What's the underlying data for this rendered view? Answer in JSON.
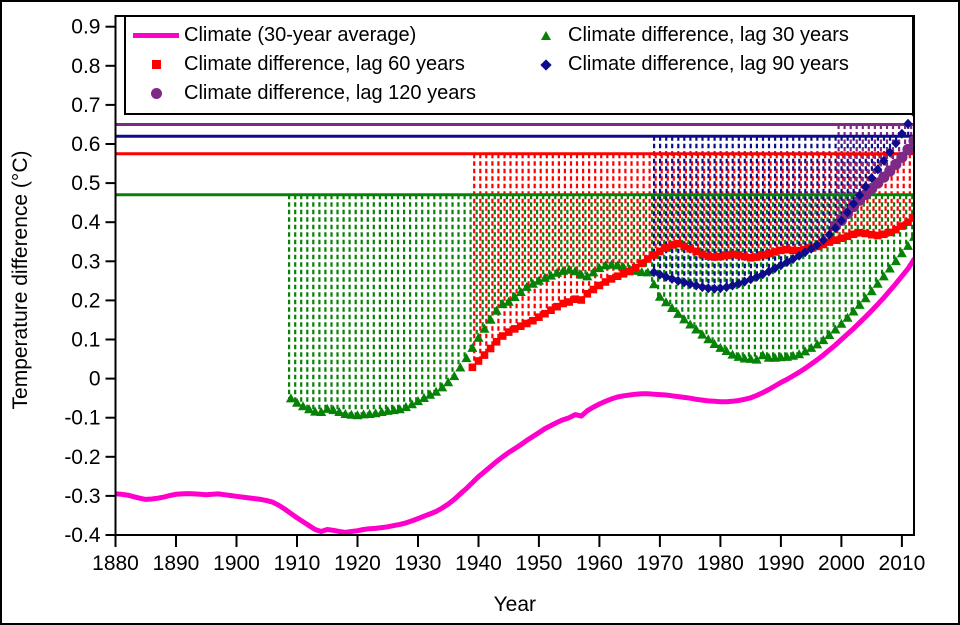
{
  "chart_data": {
    "type": "line",
    "title": "",
    "xlabel": "Year",
    "ylabel": "Temperature difference (°C)",
    "x_range": [
      1880,
      2012
    ],
    "y_range": [
      -0.4,
      0.93
    ],
    "grid": false,
    "legend_position": "top",
    "x_ticks": [
      1880,
      1890,
      1900,
      1910,
      1920,
      1930,
      1940,
      1950,
      1960,
      1970,
      1980,
      1990,
      2000,
      2010
    ],
    "y_tick_values": [
      -0.4,
      -0.3,
      -0.2,
      -0.1,
      0,
      0.1,
      0.2,
      0.3,
      0.4,
      0.5,
      0.6,
      0.7,
      0.8,
      0.9
    ],
    "y_tick_labels": [
      "-0.4",
      "-0.3",
      "-0.2",
      "-0.1",
      "0",
      "0.1",
      "0.2",
      "0.3",
      "0.4",
      "0.5",
      "0.6",
      "0.7",
      "0.8",
      "0.9"
    ],
    "reference_lines": [
      {
        "label": "Climate difference, lag 30 years",
        "value": 0.47,
        "color": "#068206"
      },
      {
        "label": "Climate difference, lag 60 years",
        "value": 0.575,
        "color": "#ff0000"
      },
      {
        "label": "Climate difference, lag 90 years",
        "value": 0.62,
        "color": "#0d0d8c"
      },
      {
        "label": "Climate difference, lag 120 years",
        "value": 0.65,
        "color": "#7d2a86"
      }
    ],
    "series": [
      {
        "name": "Climate (30-year average)",
        "color": "#ff00cc",
        "marker": "line",
        "start_year": 1880,
        "values": [
          -0.295,
          -0.296,
          -0.298,
          -0.302,
          -0.306,
          -0.309,
          -0.308,
          -0.306,
          -0.303,
          -0.299,
          -0.296,
          -0.295,
          -0.294,
          -0.295,
          -0.296,
          -0.297,
          -0.296,
          -0.295,
          -0.297,
          -0.299,
          -0.301,
          -0.303,
          -0.305,
          -0.307,
          -0.309,
          -0.312,
          -0.316,
          -0.324,
          -0.334,
          -0.345,
          -0.356,
          -0.366,
          -0.376,
          -0.386,
          -0.391,
          -0.386,
          -0.388,
          -0.391,
          -0.393,
          -0.391,
          -0.389,
          -0.386,
          -0.384,
          -0.383,
          -0.381,
          -0.379,
          -0.376,
          -0.373,
          -0.369,
          -0.364,
          -0.358,
          -0.352,
          -0.346,
          -0.34,
          -0.331,
          -0.321,
          -0.309,
          -0.295,
          -0.281,
          -0.266,
          -0.251,
          -0.238,
          -0.225,
          -0.212,
          -0.2,
          -0.189,
          -0.179,
          -0.169,
          -0.158,
          -0.148,
          -0.138,
          -0.128,
          -0.12,
          -0.112,
          -0.105,
          -0.1,
          -0.092,
          -0.096,
          -0.082,
          -0.073,
          -0.065,
          -0.058,
          -0.052,
          -0.047,
          -0.044,
          -0.042,
          -0.04,
          -0.039,
          -0.039,
          -0.04,
          -0.041,
          -0.042,
          -0.044,
          -0.046,
          -0.048,
          -0.05,
          -0.053,
          -0.055,
          -0.057,
          -0.058,
          -0.059,
          -0.059,
          -0.058,
          -0.056,
          -0.053,
          -0.049,
          -0.043,
          -0.036,
          -0.028,
          -0.019,
          -0.01,
          -0.002,
          0.007,
          0.016,
          0.026,
          0.037,
          0.048,
          0.06,
          0.073,
          0.086,
          0.1,
          0.114,
          0.128,
          0.143,
          0.158,
          0.174,
          0.19,
          0.207,
          0.225,
          0.243,
          0.262,
          0.281,
          0.305
        ]
      },
      {
        "name": "Climate difference, lag 30 years",
        "color": "#068206",
        "marker": "triangle",
        "start_year": 1909,
        "ref_line": 0.47,
        "values": [
          -0.05,
          -0.061,
          -0.07,
          -0.078,
          -0.084,
          -0.085,
          -0.077,
          -0.08,
          -0.085,
          -0.09,
          -0.092,
          -0.093,
          -0.091,
          -0.09,
          -0.088,
          -0.085,
          -0.082,
          -0.08,
          -0.078,
          -0.072,
          -0.065,
          -0.057,
          -0.049,
          -0.041,
          -0.033,
          -0.022,
          -0.009,
          0.007,
          0.029,
          0.053,
          0.079,
          0.105,
          0.128,
          0.151,
          0.174,
          0.191,
          0.197,
          0.209,
          0.222,
          0.235,
          0.243,
          0.251,
          0.258,
          0.264,
          0.271,
          0.276,
          0.279,
          0.275,
          0.266,
          0.262,
          0.272,
          0.283,
          0.29,
          0.292,
          0.29,
          0.285,
          0.28,
          0.276,
          0.273,
          0.272,
          0.242,
          0.21,
          0.196,
          0.181,
          0.166,
          0.152,
          0.139,
          0.126,
          0.113,
          0.101,
          0.089,
          0.079,
          0.071,
          0.062,
          0.056,
          0.052,
          0.051,
          0.049,
          0.06,
          0.054,
          0.054,
          0.055,
          0.056,
          0.059,
          0.063,
          0.07,
          0.079,
          0.088,
          0.099,
          0.112,
          0.126,
          0.141,
          0.156,
          0.172,
          0.189,
          0.206,
          0.224,
          0.243,
          0.262,
          0.282,
          0.301,
          0.321,
          0.34,
          0.363
        ]
      },
      {
        "name": "Climate difference, lag 60 years",
        "color": "#ff0000",
        "marker": "square",
        "start_year": 1939,
        "ref_line": 0.575,
        "values": [
          0.029,
          0.045,
          0.06,
          0.077,
          0.094,
          0.109,
          0.119,
          0.127,
          0.134,
          0.141,
          0.148,
          0.157,
          0.166,
          0.175,
          0.184,
          0.192,
          0.196,
          0.203,
          0.201,
          0.217,
          0.228,
          0.238,
          0.247,
          0.255,
          0.262,
          0.268,
          0.274,
          0.284,
          0.295,
          0.306,
          0.316,
          0.325,
          0.334,
          0.342,
          0.345,
          0.338,
          0.332,
          0.325,
          0.318,
          0.313,
          0.311,
          0.312,
          0.315,
          0.318,
          0.316,
          0.312,
          0.309,
          0.311,
          0.316,
          0.32,
          0.324,
          0.328,
          0.33,
          0.328,
          0.327,
          0.33,
          0.334,
          0.338,
          0.343,
          0.349,
          0.354,
          0.359,
          0.364,
          0.369,
          0.373,
          0.371,
          0.368,
          0.366,
          0.369,
          0.374,
          0.381,
          0.39,
          0.4,
          0.411
        ]
      },
      {
        "name": "Climate difference, lag 90 years",
        "color": "#0d0d8c",
        "marker": "diamond",
        "start_year": 1969,
        "ref_line": 0.62,
        "values": [
          0.272,
          0.266,
          0.26,
          0.255,
          0.25,
          0.246,
          0.242,
          0.238,
          0.234,
          0.231,
          0.23,
          0.231,
          0.234,
          0.238,
          0.243,
          0.248,
          0.254,
          0.26,
          0.267,
          0.274,
          0.282,
          0.29,
          0.298,
          0.306,
          0.314,
          0.323,
          0.332,
          0.342,
          0.354,
          0.368,
          0.385,
          0.404,
          0.425,
          0.447,
          0.469,
          0.491,
          0.513,
          0.535,
          0.557,
          0.579,
          0.602,
          0.626,
          0.652,
          0.68
        ]
      },
      {
        "name": "Climate difference, lag 120 years",
        "color": "#7d2a86",
        "marker": "circle",
        "start_year": 1999,
        "ref_line": 0.65,
        "values": [
          0.39,
          0.405,
          0.422,
          0.44,
          0.456,
          0.471,
          0.486,
          0.5,
          0.515,
          0.531,
          0.548,
          0.566,
          0.586,
          0.608
        ]
      }
    ]
  },
  "legend": {
    "columns": [
      {
        "items": [
          {
            "label": "Climate (30-year average)",
            "marker": "line",
            "color": "#ff00cc"
          },
          {
            "label": "Climate difference, lag 60 years",
            "marker": "square",
            "color": "#ff0000"
          },
          {
            "label": "Climate difference, lag 120 years",
            "marker": "circle",
            "color": "#7d2a86"
          }
        ]
      },
      {
        "items": [
          {
            "label": "Climate difference, lag 30 years",
            "marker": "triangle",
            "color": "#068206"
          },
          {
            "label": "Climate difference, lag 90 years",
            "marker": "diamond",
            "color": "#0d0d8c"
          }
        ]
      }
    ]
  }
}
